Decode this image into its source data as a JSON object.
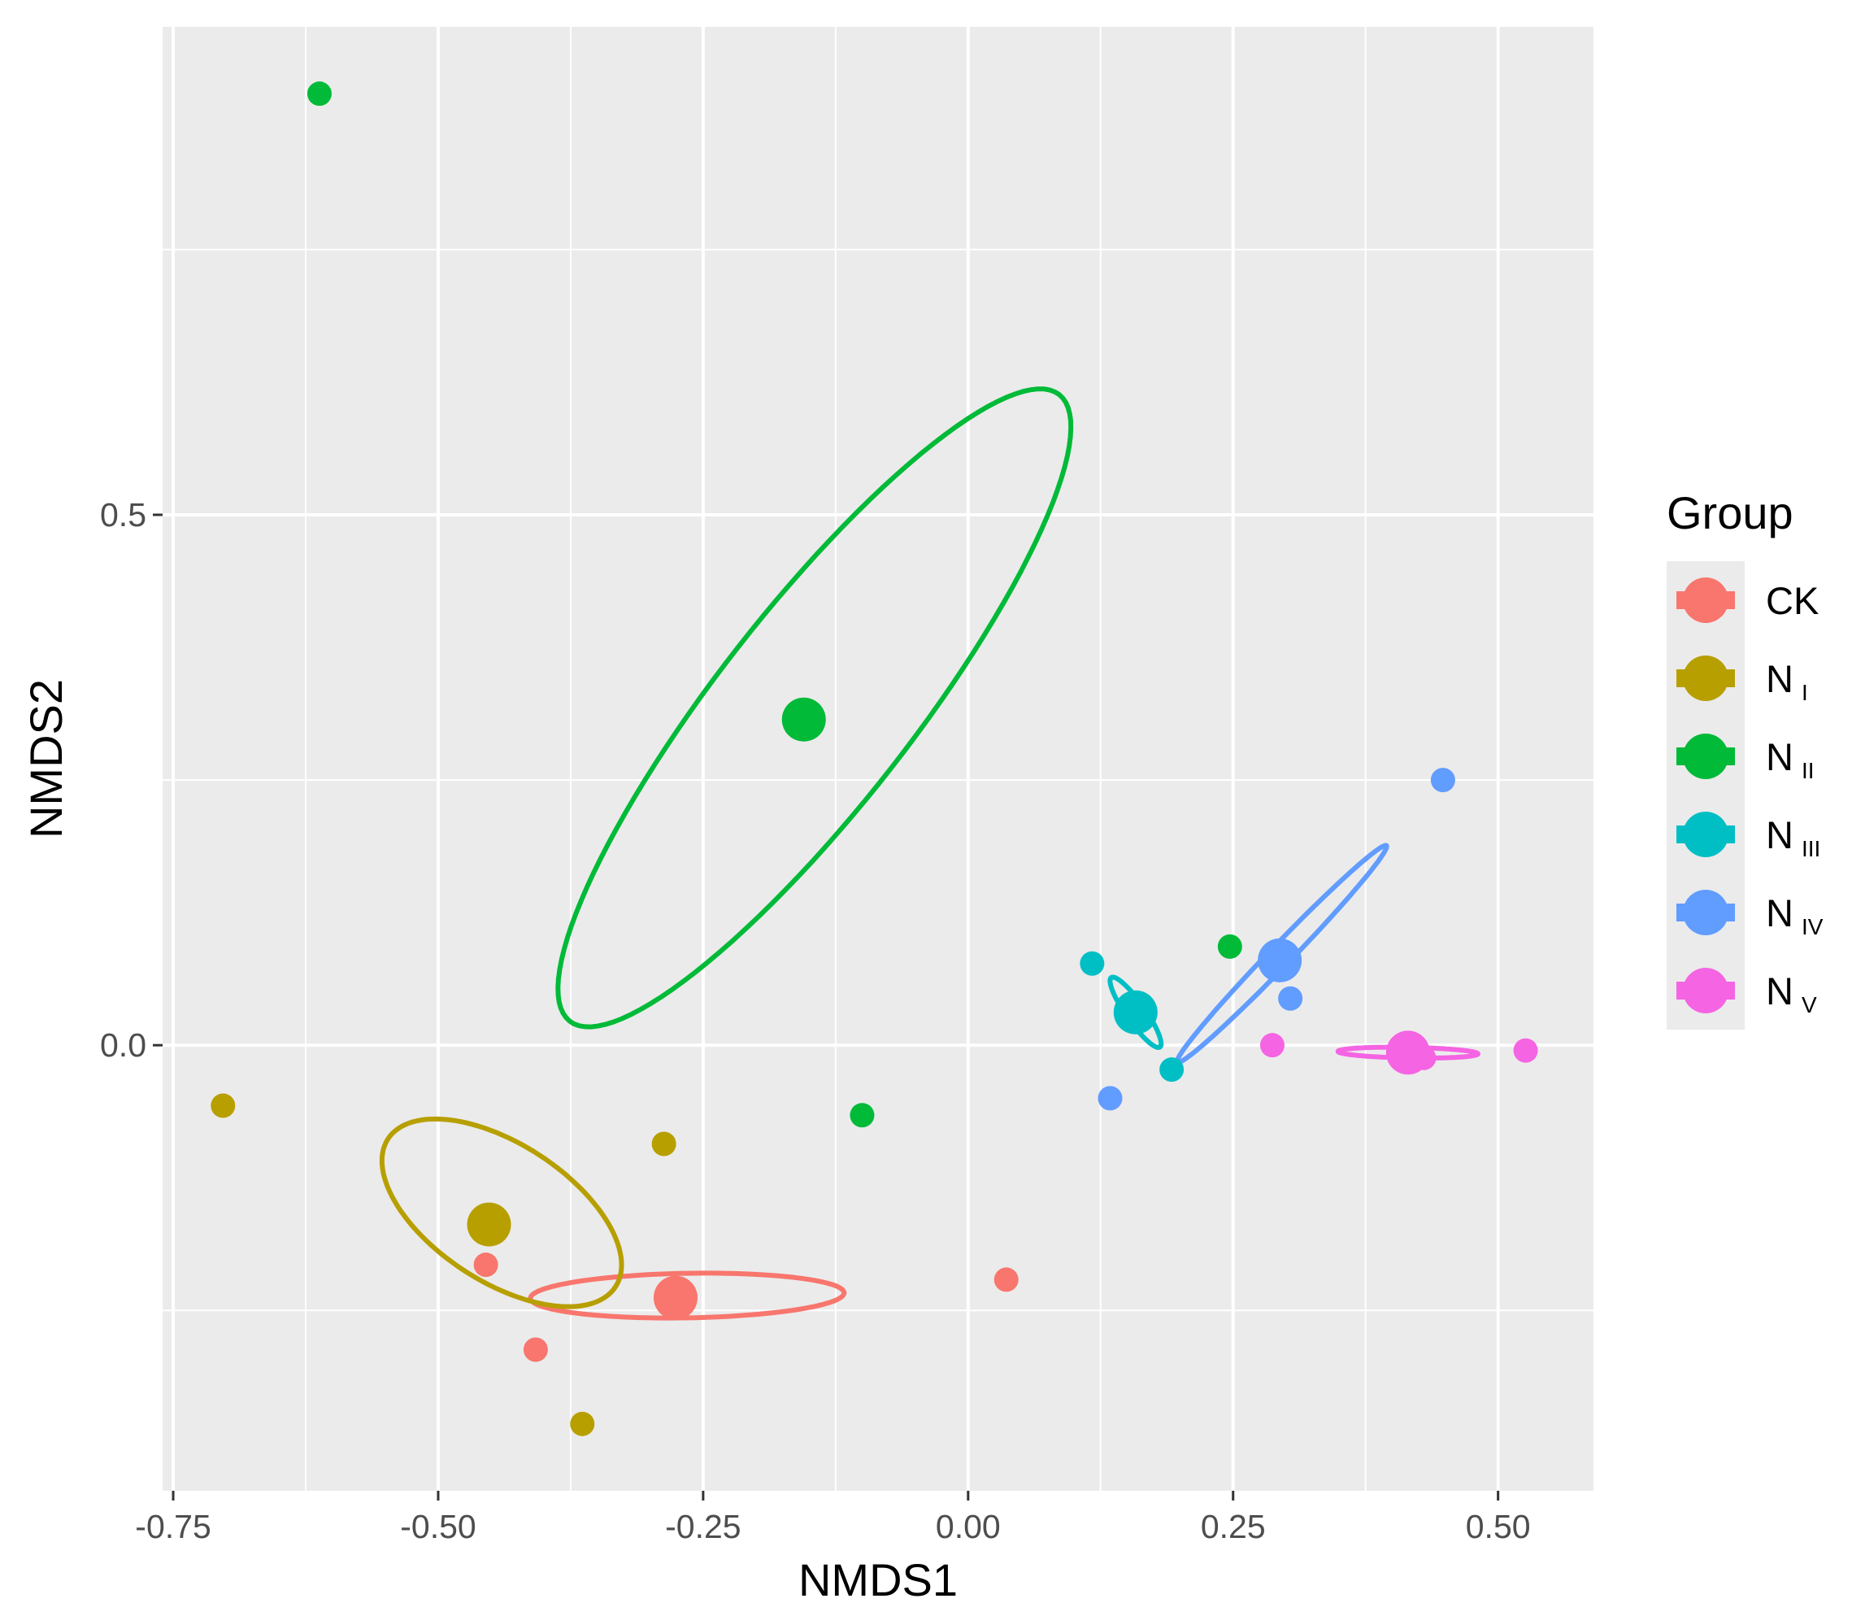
{
  "chart_data": {
    "type": "scatter",
    "title": "",
    "xlabel": "NMDS1",
    "ylabel": "NMDS2",
    "xlim": [
      -0.76,
      0.59
    ],
    "ylim": [
      -0.42,
      0.96
    ],
    "x_ticks": [
      -0.75,
      -0.5,
      -0.25,
      0.0,
      0.25,
      0.5
    ],
    "x_tick_labels": [
      "-0.75",
      "-0.50",
      "-0.25",
      "0.00",
      "0.25",
      "0.50"
    ],
    "y_ticks": [
      0.0,
      0.5
    ],
    "y_tick_labels": [
      "0.0",
      "0.5"
    ],
    "grid": true,
    "legend": {
      "title": "Group",
      "placement": "right",
      "entries": [
        {
          "base": "CK",
          "sub": ""
        },
        {
          "base": "N",
          "sub": "I"
        },
        {
          "base": "N",
          "sub": "II"
        },
        {
          "base": "N",
          "sub": "III"
        },
        {
          "base": "N",
          "sub": "IV"
        },
        {
          "base": "N",
          "sub": "V"
        }
      ]
    },
    "series": [
      {
        "name": "CK",
        "color": "#F8766D",
        "points": [
          [
            -0.455,
            -0.207
          ],
          [
            -0.408,
            -0.287
          ],
          [
            0.036,
            -0.221
          ]
        ],
        "centroid": [
          -0.276,
          -0.238
        ],
        "ellipse": {
          "center": [
            -0.265,
            -0.236
          ],
          "rx": 0.148,
          "ry": 0.021,
          "angle_deg": 1
        }
      },
      {
        "name": "N I",
        "color": "#B79F00",
        "points": [
          [
            -0.703,
            -0.057
          ],
          [
            -0.287,
            -0.093
          ],
          [
            -0.364,
            -0.357
          ]
        ],
        "centroid": [
          -0.452,
          -0.169
        ],
        "ellipse": {
          "center": [
            -0.44,
            -0.158
          ],
          "rx": 0.128,
          "ry": 0.065,
          "angle_deg": -33
        }
      },
      {
        "name": "N II",
        "color": "#00BA38",
        "points": [
          [
            -0.612,
            0.897
          ],
          [
            0.247,
            0.093
          ],
          [
            -0.1,
            -0.066
          ]
        ],
        "centroid": [
          -0.155,
          0.307
        ],
        "ellipse": {
          "center": [
            -0.145,
            0.318
          ],
          "rx": 0.375,
          "ry": 0.092,
          "angle_deg": 52
        }
      },
      {
        "name": "N III",
        "color": "#00BFC4",
        "points": [
          [
            0.117,
            0.077
          ],
          [
            0.192,
            -0.023
          ]
        ],
        "centroid": [
          0.158,
          0.031
        ],
        "ellipse": {
          "center": [
            0.158,
            0.031
          ],
          "rx": 0.04,
          "ry": 0.009,
          "angle_deg": -55
        }
      },
      {
        "name": "N IV",
        "color": "#619CFF",
        "points": [
          [
            0.448,
            0.25
          ],
          [
            0.304,
            0.044
          ],
          [
            0.134,
            -0.05
          ]
        ],
        "centroid": [
          0.294,
          0.08
        ],
        "ellipse": {
          "center": [
            0.296,
            0.086
          ],
          "rx": 0.142,
          "ry": 0.01,
          "angle_deg": 46
        }
      },
      {
        "name": "N V",
        "color": "#F564E3",
        "points": [
          [
            0.287,
            0.0
          ],
          [
            0.526,
            -0.005
          ],
          [
            0.43,
            -0.012
          ]
        ],
        "centroid": [
          0.415,
          -0.007
        ],
        "ellipse": {
          "center": [
            0.415,
            -0.007
          ],
          "rx": 0.066,
          "ry": 0.005,
          "angle_deg": -1
        }
      }
    ]
  }
}
